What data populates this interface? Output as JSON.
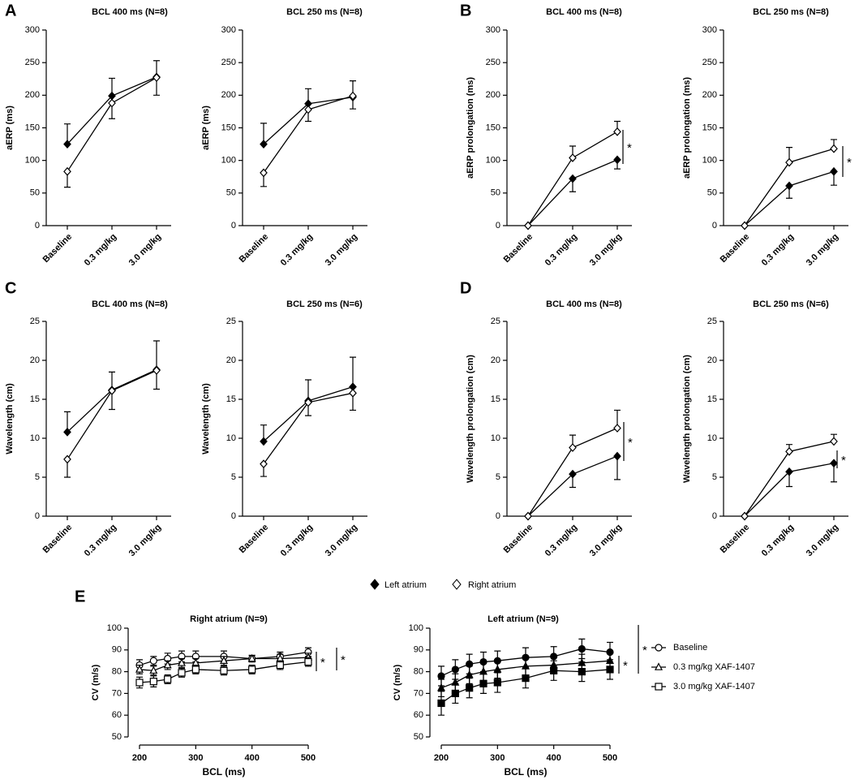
{
  "panel_labels": [
    "A",
    "B",
    "C",
    "D",
    "E"
  ],
  "chart_data": [
    {
      "type": "line",
      "title": "BCL 400 ms (N=8)",
      "ylabel": "aERP (ms)",
      "categories": [
        "Baseline",
        "0.3 mg/kg",
        "3.0 mg/kg"
      ],
      "ylim": [
        0,
        300
      ],
      "yticks": [
        0,
        50,
        100,
        150,
        200,
        250,
        300
      ],
      "series": [
        {
          "name": "Left atrium",
          "color": "#000000",
          "marker": "diamond",
          "filled": true,
          "error_side": "up",
          "values": [
            125,
            199,
            228
          ],
          "errors": [
            31,
            27,
            25
          ]
        },
        {
          "name": "Right atrium",
          "color": "#000000",
          "marker": "diamond",
          "filled": false,
          "error_side": "down",
          "values": [
            83,
            188,
            227
          ],
          "errors": [
            24,
            24,
            27
          ]
        }
      ]
    },
    {
      "type": "line",
      "title": "BCL 250 ms (N=8)",
      "ylabel": "aERP (ms)",
      "categories": [
        "Baseline",
        "0.3 mg/kg",
        "3.0 mg/kg"
      ],
      "ylim": [
        0,
        300
      ],
      "yticks": [
        0,
        50,
        100,
        150,
        200,
        250,
        300
      ],
      "series": [
        {
          "color": "#000000",
          "marker": "diamond",
          "filled": true,
          "error_side": "up",
          "values": [
            125,
            187,
            197
          ],
          "errors": [
            32,
            23,
            25
          ]
        },
        {
          "color": "#000000",
          "marker": "diamond",
          "filled": false,
          "error_side": "down",
          "values": [
            81,
            178,
            199
          ],
          "errors": [
            21,
            18,
            20
          ]
        }
      ]
    },
    {
      "type": "line",
      "title": "BCL 400 ms (N=8)",
      "ylabel": "aERP prolongation (ms)",
      "categories": [
        "Baseline",
        "0.3 mg/kg",
        "3.0 mg/kg"
      ],
      "ylim": [
        0,
        300
      ],
      "yticks": [
        0,
        50,
        100,
        150,
        200,
        250,
        300
      ],
      "series": [
        {
          "color": "#000000",
          "marker": "diamond",
          "filled": true,
          "error_side": "down",
          "values": [
            0,
            72,
            101
          ],
          "errors": [
            0,
            20,
            14
          ]
        },
        {
          "color": "#000000",
          "marker": "diamond",
          "filled": false,
          "error_side": "up",
          "values": [
            0,
            104,
            144
          ],
          "errors": [
            0,
            18,
            16
          ]
        }
      ],
      "annotations": [
        {
          "text": "*"
        }
      ]
    },
    {
      "type": "line",
      "title": "BCL 250 ms (N=8)",
      "ylabel": "aERP prolongation (ms)",
      "categories": [
        "Baseline",
        "0.3 mg/kg",
        "3.0 mg/kg"
      ],
      "ylim": [
        0,
        300
      ],
      "yticks": [
        0,
        50,
        100,
        150,
        200,
        250,
        300
      ],
      "series": [
        {
          "color": "#000000",
          "marker": "diamond",
          "filled": true,
          "error_side": "down",
          "values": [
            0,
            61,
            83
          ],
          "errors": [
            0,
            19,
            21
          ]
        },
        {
          "color": "#000000",
          "marker": "diamond",
          "filled": false,
          "error_side": "up",
          "values": [
            0,
            97,
            118
          ],
          "errors": [
            0,
            23,
            14
          ]
        }
      ],
      "annotations": [
        {
          "text": "*"
        }
      ]
    },
    {
      "type": "line",
      "title": "BCL 400 ms (N=8)",
      "ylabel": "Wavelength (cm)",
      "categories": [
        "Baseline",
        "0.3 mg/kg",
        "3.0 mg/kg"
      ],
      "ylim": [
        0,
        25
      ],
      "yticks": [
        0,
        5,
        10,
        15,
        20,
        25
      ],
      "series": [
        {
          "color": "#000000",
          "marker": "diamond",
          "filled": true,
          "error_side": "up",
          "values": [
            10.8,
            16.2,
            18.8
          ],
          "errors": [
            2.6,
            2.3,
            3.7
          ]
        },
        {
          "color": "#000000",
          "marker": "diamond",
          "filled": false,
          "error_side": "down",
          "values": [
            7.3,
            16.1,
            18.7
          ],
          "errors": [
            2.3,
            2.4,
            2.4
          ]
        }
      ]
    },
    {
      "type": "line",
      "title": "BCL 250 ms (N=6)",
      "ylabel": "Wavelength (cm)",
      "categories": [
        "Baseline",
        "0.3 mg/kg",
        "3.0 mg/kg"
      ],
      "ylim": [
        0,
        25
      ],
      "yticks": [
        0,
        5,
        10,
        15,
        20,
        25
      ],
      "series": [
        {
          "color": "#000000",
          "marker": "diamond",
          "filled": true,
          "error_side": "up",
          "values": [
            9.6,
            14.8,
            16.6
          ],
          "errors": [
            2.1,
            2.7,
            3.8
          ]
        },
        {
          "color": "#000000",
          "marker": "diamond",
          "filled": false,
          "error_side": "down",
          "values": [
            6.7,
            14.6,
            15.8
          ],
          "errors": [
            1.6,
            1.7,
            2.2
          ]
        }
      ]
    },
    {
      "type": "line",
      "title": "BCL 400 ms (N=8)",
      "ylabel": "Wavelength prolongation (cm)",
      "categories": [
        "Baseline",
        "0.3 mg/kg",
        "3.0 mg/kg"
      ],
      "ylim": [
        0,
        25
      ],
      "yticks": [
        0,
        5,
        10,
        15,
        20,
        25
      ],
      "series": [
        {
          "color": "#000000",
          "marker": "diamond",
          "filled": true,
          "error_side": "down",
          "values": [
            0,
            5.4,
            7.7
          ],
          "errors": [
            0,
            1.7,
            3.0
          ]
        },
        {
          "color": "#000000",
          "marker": "diamond",
          "filled": false,
          "error_side": "up",
          "values": [
            0,
            8.8,
            11.3
          ],
          "errors": [
            0,
            1.6,
            2.3
          ]
        }
      ],
      "annotations": [
        {
          "text": "*"
        }
      ]
    },
    {
      "type": "line",
      "title": "BCL 250 ms (N=6)",
      "ylabel": "Wavelength prolongation (cm)",
      "categories": [
        "Baseline",
        "0.3 mg/kg",
        "3.0 mg/kg"
      ],
      "ylim": [
        0,
        25
      ],
      "yticks": [
        0,
        5,
        10,
        15,
        20,
        25
      ],
      "series": [
        {
          "color": "#000000",
          "marker": "diamond",
          "filled": true,
          "error_side": "down",
          "values": [
            0,
            5.7,
            6.8
          ],
          "errors": [
            0,
            1.9,
            2.4
          ]
        },
        {
          "color": "#000000",
          "marker": "diamond",
          "filled": false,
          "error_side": "up",
          "values": [
            0,
            8.3,
            9.6
          ],
          "errors": [
            0,
            0.9,
            0.9
          ]
        }
      ],
      "annotations": [
        {
          "text": "*"
        }
      ]
    },
    {
      "type": "line",
      "title": "Right atrium (N=9)",
      "xlabel": "BCL (ms)",
      "ylabel": "CV (m/s)",
      "x": [
        200,
        225,
        250,
        275,
        300,
        350,
        400,
        450,
        500
      ],
      "xlim": [
        200,
        500
      ],
      "xticks": [
        200,
        300,
        400,
        500
      ],
      "ylim": [
        50,
        100
      ],
      "yticks": [
        50,
        60,
        70,
        80,
        90,
        100
      ],
      "series": [
        {
          "name": "Baseline",
          "color": "#000000",
          "marker": "circle",
          "filled": false,
          "error_side": "both",
          "values": [
            83,
            85,
            86,
            87,
            87,
            87,
            86,
            87,
            89
          ],
          "errors": [
            2.5,
            2,
            2.5,
            2.5,
            2.5,
            2.5,
            1.5,
            2,
            2
          ]
        },
        {
          "name": "0.3 mg/kg XAF-1407",
          "color": "#000000",
          "marker": "triangle",
          "filled": false,
          "error_side": "both",
          "values": [
            81,
            80.5,
            83,
            84,
            84,
            85,
            86,
            86,
            86.5
          ],
          "errors": [
            2,
            2,
            2,
            2,
            2,
            2,
            1.5,
            2,
            2
          ]
        },
        {
          "name": "3.0 mg/kg XAF-1407",
          "color": "#000000",
          "marker": "square",
          "filled": false,
          "error_side": "both",
          "values": [
            75,
            75.5,
            76.5,
            79.5,
            81,
            80.5,
            81,
            83,
            84.5
          ],
          "errors": [
            2.5,
            2.5,
            2,
            2,
            2,
            2,
            2,
            2,
            2
          ]
        }
      ],
      "annotations": [
        {
          "text": "*"
        },
        {
          "text": "*"
        }
      ]
    },
    {
      "type": "line",
      "title": "Left atrium (N=9)",
      "xlabel": "BCL (ms)",
      "ylabel": "CV (m/s)",
      "x": [
        200,
        225,
        250,
        275,
        300,
        350,
        400,
        450,
        500
      ],
      "xlim": [
        200,
        500
      ],
      "xticks": [
        200,
        300,
        400,
        500
      ],
      "ylim": [
        50,
        100
      ],
      "yticks": [
        50,
        60,
        70,
        80,
        90,
        100
      ],
      "series": [
        {
          "color": "#000000",
          "marker": "circle",
          "filled": true,
          "error_side": "both",
          "values": [
            78,
            81,
            83.5,
            84.5,
            85,
            86.5,
            87,
            90.5,
            89
          ],
          "errors": [
            4.5,
            4.5,
            4.5,
            4.5,
            4.5,
            4.5,
            4.5,
            4.5,
            4.5
          ]
        },
        {
          "color": "#000000",
          "marker": "triangle",
          "filled": true,
          "error_side": "both",
          "values": [
            72.5,
            75,
            78.5,
            80,
            81,
            82.5,
            83,
            84,
            85
          ],
          "errors": [
            4,
            4,
            4,
            4,
            4,
            4,
            4,
            4,
            4
          ]
        },
        {
          "color": "#000000",
          "marker": "square",
          "filled": true,
          "error_side": "both",
          "values": [
            65.5,
            70,
            72.5,
            74.5,
            75,
            77,
            80.5,
            80,
            81
          ],
          "errors": [
            5.5,
            4.5,
            4.5,
            4.5,
            4.5,
            4.5,
            4.5,
            4.5,
            4.5
          ]
        }
      ],
      "annotations": [
        {
          "text": "*"
        },
        {
          "text": "*"
        }
      ]
    }
  ]
}
